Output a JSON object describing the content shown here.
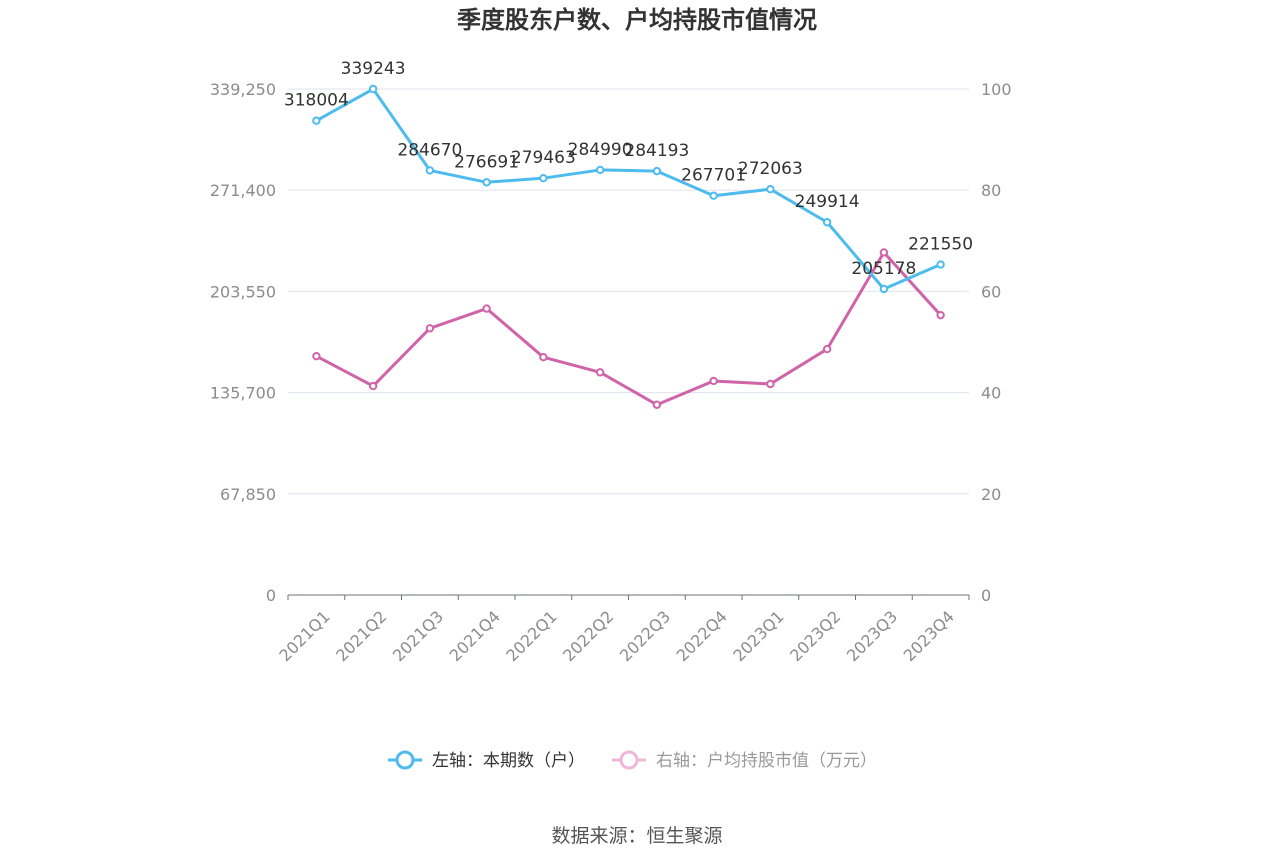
{
  "chart_data": {
    "type": "line",
    "title": "季度股东户数、户均持股市值情况",
    "categories": [
      "2021Q1",
      "2021Q2",
      "2021Q3",
      "2021Q4",
      "2022Q1",
      "2022Q2",
      "2022Q3",
      "2022Q4",
      "2023Q1",
      "2023Q2",
      "2023Q3",
      "2023Q4"
    ],
    "left_axis": {
      "ticks": [
        "0",
        "67,850",
        "135,700",
        "203,550",
        "271,400",
        "339,250"
      ],
      "ylim": [
        0,
        339250
      ]
    },
    "right_axis": {
      "ticks": [
        "0",
        "20",
        "40",
        "60",
        "80",
        "100"
      ],
      "ylim": [
        0,
        100
      ]
    },
    "series": [
      {
        "name": "左轴：本期数（户）",
        "axis": "left",
        "color": "#4dbbee",
        "values": [
          318004,
          339243,
          284670,
          276691,
          279463,
          284990,
          284193,
          267701,
          272063,
          249914,
          205178,
          221550
        ],
        "labels": [
          "318004",
          "339243",
          "284670",
          "276691",
          "279463",
          "284990",
          "284193",
          "267701",
          "272063",
          "249914",
          "205178",
          "221550"
        ]
      },
      {
        "name": "右轴：户均持股市值（万元）",
        "axis": "right",
        "color": "#d064a9",
        "values": [
          47.2,
          41.3,
          52.7,
          56.6,
          47.0,
          44.0,
          37.6,
          42.3,
          41.7,
          48.6,
          67.7,
          55.3
        ]
      }
    ],
    "grid": true,
    "legend_position": "bottom"
  },
  "source": "数据来源：恒生聚源"
}
